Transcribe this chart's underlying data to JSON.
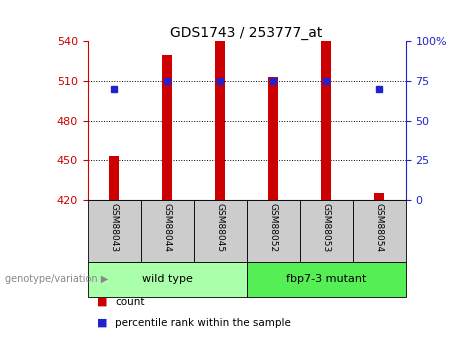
{
  "title": "GDS1743 / 253777_at",
  "samples": [
    "GSM88043",
    "GSM88044",
    "GSM88045",
    "GSM88052",
    "GSM88053",
    "GSM88054"
  ],
  "counts": [
    453,
    530,
    540,
    513,
    540,
    425
  ],
  "percentiles": [
    70,
    75,
    75,
    75,
    75,
    70
  ],
  "ylim_left": [
    420,
    540
  ],
  "ylim_right": [
    0,
    100
  ],
  "yticks_left": [
    420,
    450,
    480,
    510,
    540
  ],
  "yticks_right": [
    0,
    25,
    50,
    75,
    100
  ],
  "ytick_right_labels": [
    "0",
    "25",
    "50",
    "75",
    "100%"
  ],
  "bar_color": "#cc0000",
  "dot_color": "#2222cc",
  "bar_bottom": 420,
  "group_info": [
    {
      "start": 0,
      "end": 2,
      "label": "wild type",
      "color": "#aaffaa"
    },
    {
      "start": 3,
      "end": 5,
      "label": "fbp7-3 mutant",
      "color": "#55ee55"
    }
  ],
  "group_label": "genotype/variation",
  "legend_count_label": "count",
  "legend_pct_label": "percentile rank within the sample",
  "tick_color_left": "#cc0000",
  "tick_color_right": "#2222cc",
  "bg_color": "#ffffff",
  "xlabel_area_color": "#cccccc",
  "bar_width": 0.18
}
